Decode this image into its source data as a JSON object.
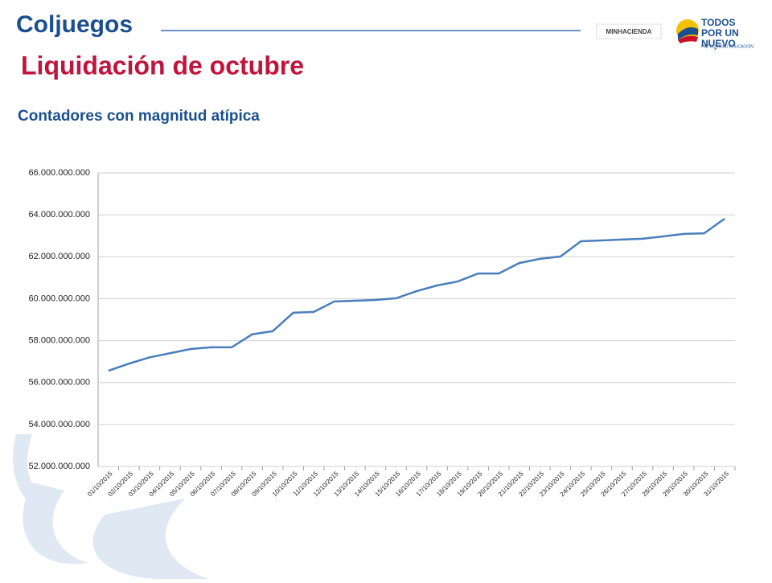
{
  "header": {
    "logo": "Coljuegos",
    "ministry": "MINHACIENDA",
    "slogan": "TODOS POR UN NUEVO PAÍS",
    "motto": "PAZ EQUIDAD EDUCACIÓN"
  },
  "title": "Liquidación de octubre",
  "subtitle": "Contadores con magnitud atípica",
  "chart_data": {
    "type": "line",
    "categories": [
      "01/10/2015",
      "02/10/2015",
      "03/10/2015",
      "04/10/2015",
      "05/10/2015",
      "06/10/2015",
      "07/10/2015",
      "08/10/2015",
      "09/10/2015",
      "10/10/2015",
      "11/10/2015",
      "12/10/2015",
      "13/10/2015",
      "14/10/2015",
      "15/10/2015",
      "16/10/2015",
      "17/10/2015",
      "18/10/2015",
      "19/10/2015",
      "20/10/2015",
      "21/10/2015",
      "22/10/2015",
      "23/10/2015",
      "24/10/2015",
      "25/10/2015",
      "26/10/2015",
      "27/10/2015",
      "28/10/2015",
      "29/10/2015",
      "30/10/2015",
      "31/10/2015"
    ],
    "values": [
      56560000000,
      56900000000,
      57200000000,
      57400000000,
      57600000000,
      57680000000,
      57680000000,
      58300000000,
      58450000000,
      59330000000,
      59370000000,
      59870000000,
      59900000000,
      59940000000,
      60020000000,
      60360000000,
      60630000000,
      60820000000,
      61200000000,
      61200000000,
      61700000000,
      61900000000,
      62010000000,
      62740000000,
      62780000000,
      62820000000,
      62860000000,
      62970000000,
      63090000000,
      63120000000,
      63820000000
    ],
    "color": "#4a7ebb",
    "ylim": [
      52000000000,
      66000000000
    ],
    "yticks": [
      {
        "value": 52000000000,
        "label": "52.000.000.000"
      },
      {
        "value": 54000000000,
        "label": "54.000.000.000"
      },
      {
        "value": 56000000000,
        "label": "56.000.000.000"
      },
      {
        "value": 58000000000,
        "label": "58.000.000.000"
      },
      {
        "value": 60000000000,
        "label": "60.000.000.000"
      },
      {
        "value": 62000000000,
        "label": "62.000.000.000"
      },
      {
        "value": 64000000000,
        "label": "64.000.000.000"
      },
      {
        "value": 66000000000,
        "label": "66.000.000.000"
      }
    ],
    "grid": true
  }
}
